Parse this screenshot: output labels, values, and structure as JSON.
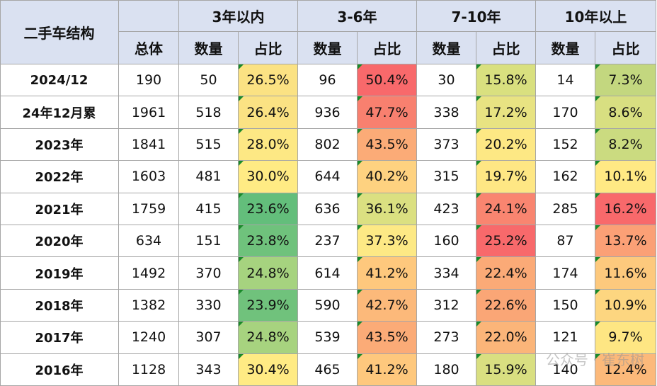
{
  "header": {
    "corner": "二手车结构",
    "total": "总体",
    "groups": [
      {
        "name": "3年以内",
        "count": "数量",
        "share": "占比"
      },
      {
        "name": "3-6年",
        "count": "数量",
        "share": "占比"
      },
      {
        "name": "7-10年",
        "count": "数量",
        "share": "占比"
      },
      {
        "name": "10年以上",
        "count": "数量",
        "share": "占比"
      }
    ]
  },
  "rows": [
    {
      "label": "2024/12",
      "total": "190",
      "cells": [
        {
          "count": "50",
          "share": "26.5%",
          "color": "#fbe283"
        },
        {
          "count": "96",
          "share": "50.4%",
          "color": "#f8696b"
        },
        {
          "count": "30",
          "share": "15.8%",
          "color": "#d9e07f"
        },
        {
          "count": "14",
          "share": "7.3%",
          "color": "#c3d77f"
        }
      ]
    },
    {
      "label": "24年12月累",
      "total": "1961",
      "cells": [
        {
          "count": "518",
          "share": "26.4%",
          "color": "#fbe283"
        },
        {
          "count": "936",
          "share": "47.7%",
          "color": "#f8806f"
        },
        {
          "count": "338",
          "share": "17.2%",
          "color": "#e8e382"
        },
        {
          "count": "170",
          "share": "8.6%",
          "color": "#d8df81"
        }
      ]
    },
    {
      "label": "2023年",
      "total": "1841",
      "cells": [
        {
          "count": "515",
          "share": "28.0%",
          "color": "#fde884"
        },
        {
          "count": "802",
          "share": "43.5%",
          "color": "#fbab77"
        },
        {
          "count": "373",
          "share": "20.2%",
          "color": "#fde884"
        },
        {
          "count": "152",
          "share": "8.2%",
          "color": "#cbdb80"
        }
      ]
    },
    {
      "label": "2022年",
      "total": "1603",
      "cells": [
        {
          "count": "481",
          "share": "30.0%",
          "color": "#ffeb84"
        },
        {
          "count": "644",
          "share": "40.2%",
          "color": "#fed280"
        },
        {
          "count": "315",
          "share": "19.7%",
          "color": "#fee784"
        },
        {
          "count": "162",
          "share": "10.1%",
          "color": "#ffe984"
        }
      ]
    },
    {
      "label": "2021年",
      "total": "1759",
      "cells": [
        {
          "count": "415",
          "share": "23.6%",
          "color": "#63be7b"
        },
        {
          "count": "636",
          "share": "36.1%",
          "color": "#dbe081"
        },
        {
          "count": "423",
          "share": "24.1%",
          "color": "#f98570"
        },
        {
          "count": "285",
          "share": "16.2%",
          "color": "#f8696b"
        }
      ]
    },
    {
      "label": "2020年",
      "total": "634",
      "cells": [
        {
          "count": "151",
          "share": "23.8%",
          "color": "#6fc27c"
        },
        {
          "count": "237",
          "share": "37.3%",
          "color": "#fde985"
        },
        {
          "count": "160",
          "share": "25.2%",
          "color": "#f8696b"
        },
        {
          "count": "87",
          "share": "13.7%",
          "color": "#fba076"
        }
      ]
    },
    {
      "label": "2019年",
      "total": "1492",
      "cells": [
        {
          "count": "370",
          "share": "24.8%",
          "color": "#a6d37f"
        },
        {
          "count": "614",
          "share": "41.2%",
          "color": "#fec87d"
        },
        {
          "count": "334",
          "share": "22.4%",
          "color": "#fbaa77"
        },
        {
          "count": "174",
          "share": "11.6%",
          "color": "#fdc97d"
        }
      ]
    },
    {
      "label": "2018年",
      "total": "1382",
      "cells": [
        {
          "count": "330",
          "share": "23.9%",
          "color": "#70c27c"
        },
        {
          "count": "590",
          "share": "42.7%",
          "color": "#fcb97a"
        },
        {
          "count": "312",
          "share": "22.6%",
          "color": "#faa676"
        },
        {
          "count": "150",
          "share": "10.9%",
          "color": "#fdd680"
        }
      ]
    },
    {
      "label": "2017年",
      "total": "1240",
      "cells": [
        {
          "count": "307",
          "share": "24.8%",
          "color": "#a7d37f"
        },
        {
          "count": "539",
          "share": "43.5%",
          "color": "#fbab77"
        },
        {
          "count": "273",
          "share": "22.0%",
          "color": "#fbb579"
        },
        {
          "count": "121",
          "share": "9.7%",
          "color": "#fee683"
        }
      ]
    },
    {
      "label": "2016年",
      "total": "1128",
      "cells": [
        {
          "count": "343",
          "share": "30.4%",
          "color": "#ffeb84"
        },
        {
          "count": "465",
          "share": "41.2%",
          "color": "#fec87d"
        },
        {
          "count": "180",
          "share": "15.9%",
          "color": "#d9df81"
        },
        {
          "count": "140",
          "share": "12.4%",
          "color": "#fcb97a"
        }
      ]
    }
  ],
  "watermark": "公众号 · 崔东树"
}
